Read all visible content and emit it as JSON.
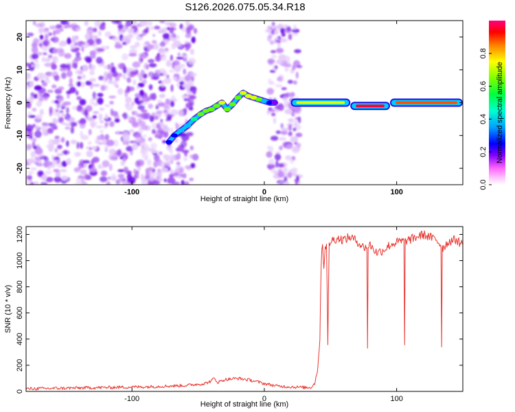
{
  "title": "S126.2026.075.05.34.R18",
  "colors": {
    "snr_line": "#e8322c",
    "spectrogram_noise": "#7a2cf0",
    "colormap": [
      "#ffffff",
      "#ffd6ff",
      "#ff80ff",
      "#8000ff",
      "#0000ff",
      "#00c0ff",
      "#00ff90",
      "#60ff00",
      "#e0ff00",
      "#ffc000",
      "#ff5000",
      "#ff0030",
      "#ff0080"
    ]
  },
  "chart_data": [
    {
      "type": "heatmap",
      "title": "S126.2026.075.05.34.R18",
      "xlabel": "Height of straight line (km)",
      "ylabel": "Frequency (Hz)",
      "xlim": [
        -180,
        150
      ],
      "ylim": [
        -25,
        25
      ],
      "xticks": [
        -100,
        0,
        100
      ],
      "yticks": [
        -20,
        -10,
        0,
        10,
        20
      ],
      "colorbar": {
        "label": "Normalized spectral amplitude",
        "range": [
          0,
          1
        ],
        "ticks": [
          "0.0",
          "0.2",
          "0.4",
          "0.6",
          "0.8"
        ]
      },
      "noise_region_km": [
        [
          -180,
          -52
        ],
        [
          3,
          27
        ]
      ],
      "signal_track": {
        "x": [
          -72,
          -68,
          -63,
          -58,
          -53,
          -48,
          -44,
          -40,
          -36,
          -32,
          -28,
          -24,
          -20,
          -16,
          -12,
          -8,
          -4,
          0,
          4,
          8
        ],
        "freq": [
          -12,
          -10,
          -8.5,
          -7,
          -5,
          -3.5,
          -2.5,
          -2,
          -1,
          0,
          -2,
          -0.5,
          1.5,
          3,
          2,
          1.5,
          1,
          0.5,
          0,
          0
        ],
        "amplitude": [
          0.3,
          0.35,
          0.4,
          0.45,
          0.5,
          0.55,
          0.55,
          0.6,
          0.62,
          0.65,
          0.55,
          0.6,
          0.62,
          0.68,
          0.7,
          0.66,
          0.55,
          0.45,
          0.3,
          0.25
        ]
      },
      "tone_segments": [
        {
          "x": [
            20,
            65
          ],
          "freq": 0,
          "amplitude": 0.7
        },
        {
          "x": [
            65,
            95
          ],
          "freq": -1,
          "amplitude": 0.9
        },
        {
          "x": [
            95,
            150
          ],
          "freq": 0,
          "amplitude": 0.82
        }
      ]
    },
    {
      "type": "line",
      "xlabel": "Height of straight line (km)",
      "ylabel": "SNR (10 * v/v)",
      "xlim": [
        -180,
        150
      ],
      "ylim": [
        0,
        1260
      ],
      "xticks": [
        -100,
        0,
        100
      ],
      "yticks": [
        0,
        200,
        400,
        600,
        800,
        1000,
        1200
      ],
      "series": [
        {
          "x": [
            -180,
            -150,
            -120,
            -90,
            -60,
            -45,
            -40,
            -38,
            -35,
            -30,
            -20,
            -10,
            0,
            10,
            20,
            30,
            35,
            38,
            40,
            42,
            43,
            44,
            45,
            46,
            47,
            48,
            49,
            50,
            55,
            60,
            65,
            70,
            75,
            80,
            85,
            90,
            95,
            100,
            105,
            110,
            115,
            120,
            125,
            130,
            135,
            140,
            145,
            150
          ],
          "y": [
            20,
            25,
            30,
            35,
            45,
            60,
            80,
            100,
            70,
            90,
            100,
            85,
            60,
            40,
            35,
            30,
            30,
            60,
            150,
            400,
            1000,
            1150,
            950,
            1100,
            1140,
            350,
            1120,
            1150,
            1170,
            1160,
            1180,
            1150,
            1100,
            1120,
            1060,
            1080,
            1120,
            1140,
            1150,
            1160,
            1180,
            1200,
            1180,
            1160,
            1100,
            1150,
            1160,
            1120
          ],
          "dips": [
            {
              "x": 78,
              "y": 330
            },
            {
              "x": 106,
              "y": 355
            },
            {
              "x": 134,
              "y": 340
            }
          ]
        }
      ]
    }
  ]
}
